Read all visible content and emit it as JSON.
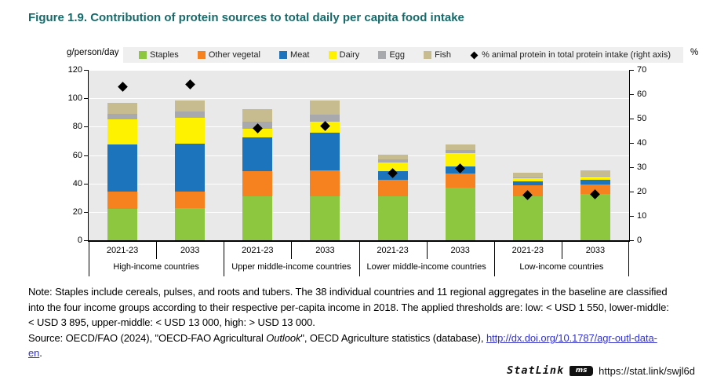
{
  "title": "Figure 1.9. Contribution of protein sources to total daily per capita food intake",
  "chart_data": {
    "type": "bar",
    "stacked": true,
    "left_axis_label": "g/person/day",
    "right_axis_label": "%",
    "ylim_left": [
      0,
      120
    ],
    "left_step": 20,
    "ylim_right": [
      0,
      70
    ],
    "right_step": 10,
    "grid": "white horizontal lines every 20 g on gray plot background",
    "legend_position": "top strip",
    "plot_bg": "#E9E9E9",
    "groups": [
      {
        "label": "High-income countries",
        "years": [
          "2021-23",
          "2033"
        ]
      },
      {
        "label": "Upper middle-income countries",
        "years": [
          "2021-23",
          "2033"
        ]
      },
      {
        "label": "Lower middle-income countries",
        "years": [
          "2021-23",
          "2033"
        ]
      },
      {
        "label": "Low-income countries",
        "years": [
          "2021-23",
          "2033"
        ]
      }
    ],
    "bar_order": [
      "High-income 2021-23",
      "High-income 2033",
      "Upper middle-income 2021-23",
      "Upper middle-income 2033",
      "Lower middle-income 2021-23",
      "Lower middle-income 2033",
      "Low-income 2021-23",
      "Low-income 2033"
    ],
    "series": [
      {
        "name": "Staples",
        "color": "#8DC63F",
        "values": [
          22,
          22.5,
          31,
          31,
          31,
          37,
          31,
          32.5
        ]
      },
      {
        "name": "Other vegetal",
        "color": "#F5821F",
        "values": [
          12.5,
          12,
          17.5,
          18.5,
          11.5,
          10,
          7.5,
          7
        ]
      },
      {
        "name": "Meat",
        "color": "#1C75BC",
        "values": [
          33,
          33.5,
          24,
          26.5,
          6,
          5,
          3,
          3
        ]
      },
      {
        "name": "Dairy",
        "color": "#FFF200",
        "values": [
          17.5,
          18.5,
          6,
          7.5,
          6.5,
          9.5,
          2,
          2.3
        ]
      },
      {
        "name": "Egg",
        "color": "#A7A9AC",
        "values": [
          4,
          4,
          5,
          5,
          2,
          2,
          0.7,
          0.7
        ]
      },
      {
        "name": "Fish",
        "color": "#C6BC8F",
        "values": [
          8,
          8,
          9,
          10,
          3.5,
          4,
          3.3,
          3.5
        ]
      }
    ],
    "scatter": {
      "name": "% animal protein in total protein intake (right axis)",
      "marker": "diamond",
      "color": "#000000",
      "axis": "right",
      "values": [
        63,
        64,
        46,
        47,
        27.5,
        29.5,
        18.5,
        19
      ]
    }
  },
  "note": {
    "lines": [
      "Note: Staples include cereals, pulses, and roots and tubers. The 38 individual countries and 11 regional aggregates in the baseline are classified",
      "into the four income groups according to their respective per-capita income in 2018. The applied thresholds are: low: < USD 1 550, lower-middle:",
      "< USD 3 895, upper-middle: < USD 13 000, high: > USD 13 000."
    ]
  },
  "source": {
    "line1": [
      {
        "text": "Source: OECD/FAO (2024), \"OECD-FAO Agricultural ",
        "style": "normal"
      },
      {
        "text": "Outlook",
        "style": "italic"
      },
      {
        "text": "\", OECD Agriculture statistics (database), ",
        "style": "normal"
      },
      {
        "text": "http://dx.doi.org/10.1787/agr-outl-data-",
        "style": "link"
      }
    ],
    "line2": [
      {
        "text": "en",
        "style": "link"
      },
      {
        "text": ".",
        "style": "normal"
      }
    ]
  },
  "statlink": {
    "label": "StatLink",
    "icon_text": "ms",
    "url": "https://stat.link/swjl6d"
  }
}
